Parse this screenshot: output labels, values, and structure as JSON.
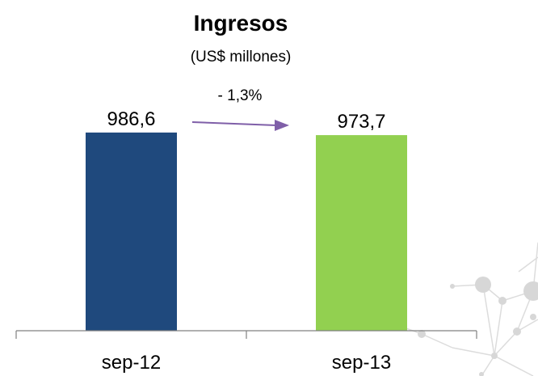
{
  "chart_data": {
    "type": "bar",
    "title": "Ingresos",
    "subtitle": "(US$ millones)",
    "categories": [
      "sep-12",
      "sep-13"
    ],
    "values": [
      986.6,
      973.7
    ],
    "value_labels": [
      "986,6",
      "973,7"
    ],
    "bar_colors": [
      "#1f497d",
      "#92d050"
    ],
    "change_label": "- 1,3%",
    "change_arrow_color": "#7f5fa8",
    "xlabel": "",
    "ylabel": "",
    "ylim": [
      0,
      1000
    ],
    "grid": false,
    "legend": "none"
  }
}
